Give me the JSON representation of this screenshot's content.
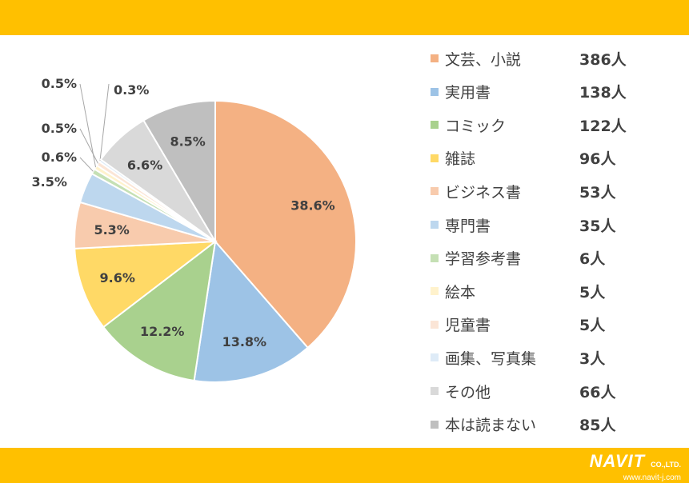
{
  "theme": {
    "band_color": "#FFC000",
    "text_color": "#404040",
    "slice_border": "#ffffff",
    "leader_color": "#A6A6A6"
  },
  "chart_data": {
    "type": "pie",
    "start_angle_deg": 0,
    "direction": "clockwise",
    "legend_position": "right",
    "slices": [
      {
        "name": "文芸、小説",
        "count": "386人",
        "value": 38.6,
        "label": "38.6%",
        "color": "#F4B183"
      },
      {
        "name": "実用書",
        "count": "138人",
        "value": 13.8,
        "label": "13.8%",
        "color": "#9DC3E6"
      },
      {
        "name": "コミック",
        "count": "122人",
        "value": 12.2,
        "label": "12.2%",
        "color": "#A9D18E"
      },
      {
        "name": "雑誌",
        "count": "96人",
        "value": 9.6,
        "label": "9.6%",
        "color": "#FFD966"
      },
      {
        "name": "ビジネス書",
        "count": "53人",
        "value": 5.3,
        "label": "5.3%",
        "color": "#F8CBAD"
      },
      {
        "name": "専門書",
        "count": "35人",
        "value": 3.5,
        "label": "3.5%",
        "color": "#BDD7EE"
      },
      {
        "name": "学習参考書",
        "count": "6人",
        "value": 0.6,
        "label": "0.6%",
        "color": "#C5E0B4"
      },
      {
        "name": "絵本",
        "count": "5人",
        "value": 0.5,
        "label": "0.5%",
        "color": "#FFF2CC"
      },
      {
        "name": "児童書",
        "count": "5人",
        "value": 0.5,
        "label": "0.5%",
        "color": "#FBE5D6"
      },
      {
        "name": "画集、写真集",
        "count": "3人",
        "value": 0.3,
        "label": "0.3%",
        "color": "#DEEBF7"
      },
      {
        "name": "その他",
        "count": "66人",
        "value": 6.6,
        "label": "6.6%",
        "color": "#D9D9D9"
      },
      {
        "name": "本は読まない",
        "count": "85人",
        "value": 8.5,
        "label": "8.5%",
        "color": "#BFBFBF"
      }
    ]
  },
  "logo": {
    "brand": "NAVIT",
    "suffix": "CO.,LTD.",
    "url": "www.navit-j.com"
  }
}
